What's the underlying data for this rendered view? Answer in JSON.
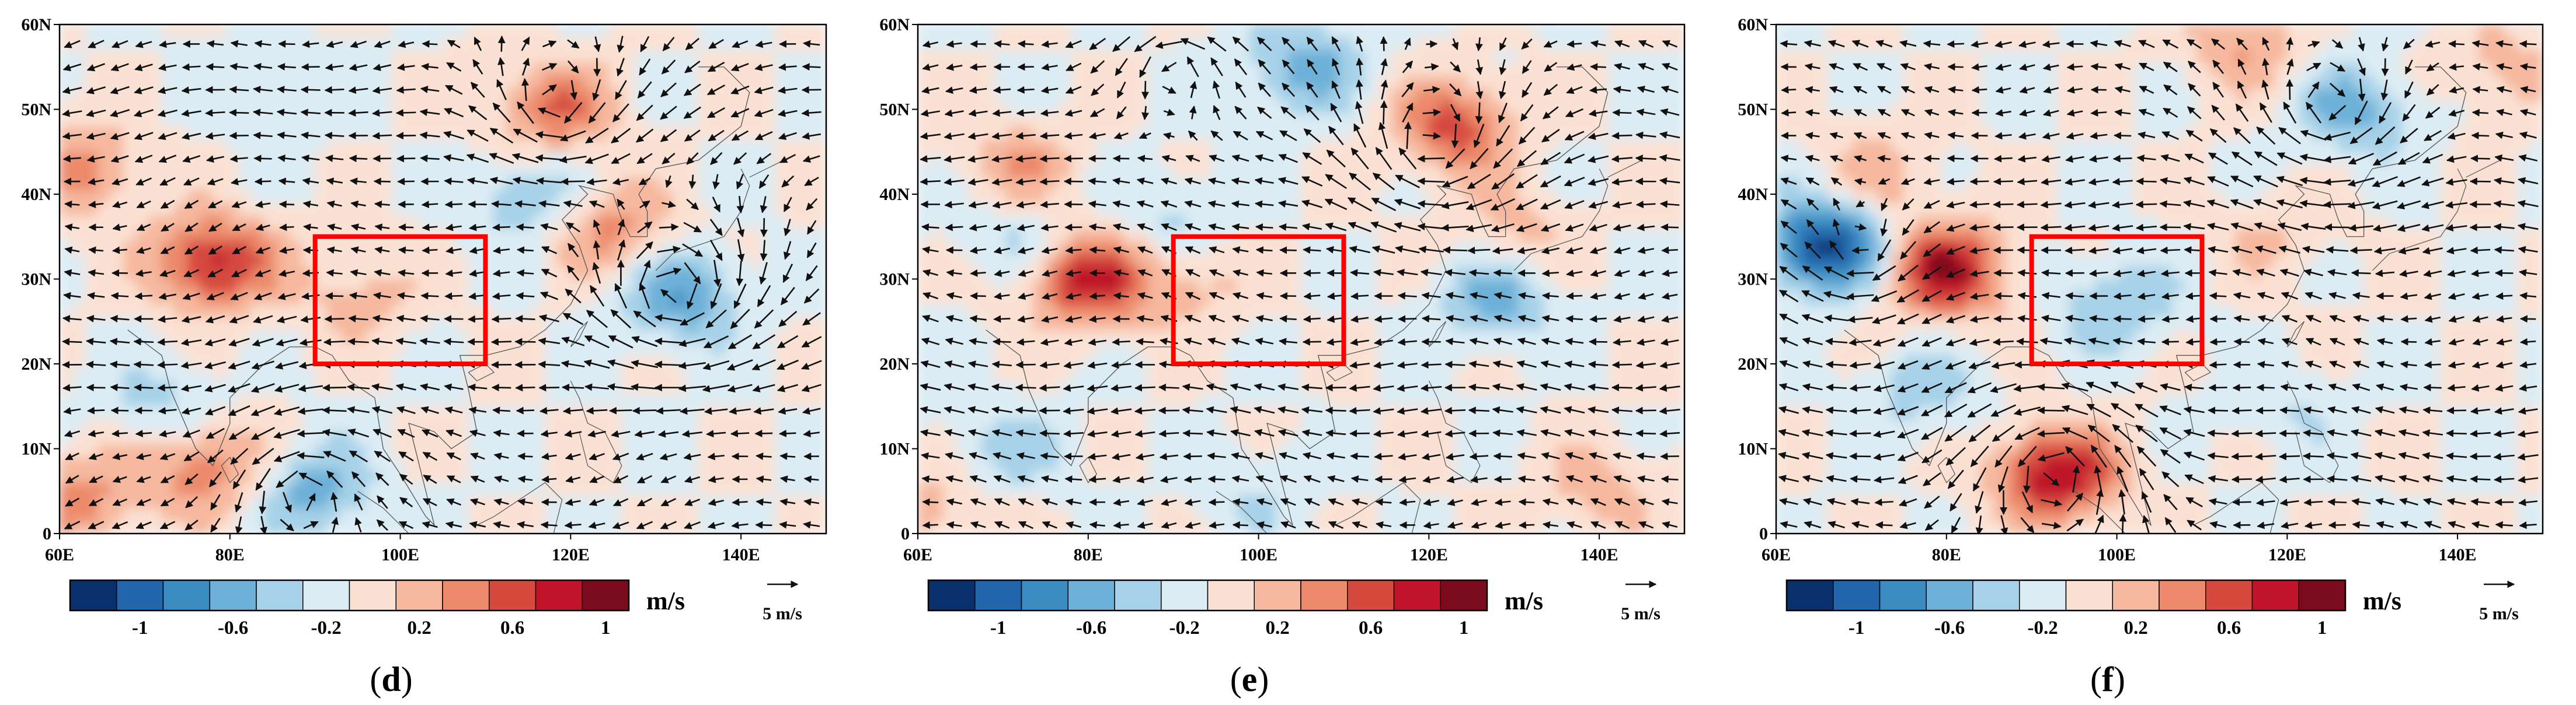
{
  "chart_data": [
    {
      "type": "heatmap",
      "panel": "d",
      "title": "",
      "xlabel": "",
      "ylabel": "",
      "xlim": [
        60,
        150
      ],
      "ylim": [
        0,
        60
      ],
      "x_ticks": [
        "60E",
        "80E",
        "100E",
        "120E",
        "140E"
      ],
      "y_ticks": [
        "0",
        "10N",
        "20N",
        "30N",
        "40N",
        "50N",
        "60N"
      ],
      "box_region": {
        "lon": [
          90,
          110
        ],
        "lat": [
          20,
          35
        ]
      },
      "anomaly_centers": [
        {
          "lon": 78,
          "lat": 32,
          "value": 0.9
        },
        {
          "lon": 63,
          "lat": 43,
          "value": 0.5
        },
        {
          "lon": 77,
          "lat": 8,
          "value": 0.6
        },
        {
          "lon": 62,
          "lat": 4,
          "value": 0.5
        },
        {
          "lon": 118,
          "lat": 50,
          "value": 0.6
        },
        {
          "lon": 125,
          "lat": 36,
          "value": 0.5
        },
        {
          "lon": 133,
          "lat": 28,
          "value": -0.6
        },
        {
          "lon": 115,
          "lat": 40,
          "value": -0.4
        },
        {
          "lon": 90,
          "lat": 5,
          "value": -0.5
        },
        {
          "lon": 72,
          "lat": 15,
          "value": -0.3
        },
        {
          "lon": 95,
          "lat": 28,
          "value": 0.3
        },
        {
          "lon": 85,
          "lat": 52,
          "value": -0.2
        }
      ],
      "vortices": [
        {
          "lon": 132,
          "lat": 28,
          "sense": "cw",
          "strength": 1.4
        },
        {
          "lon": 118,
          "lat": 50,
          "sense": "cw",
          "strength": 1.0
        },
        {
          "lon": 88,
          "lat": 5,
          "sense": "ccw",
          "strength": 0.9
        }
      ],
      "base_wind": {
        "u": -0.7,
        "v": -0.1
      },
      "colorbar": {
        "levels": [
          "-1",
          "-0.6",
          "-0.2",
          "0.2",
          "0.6",
          "1"
        ],
        "colors": [
          "#08306b",
          "#2166ac",
          "#3b8cc2",
          "#6db0d8",
          "#a6d1e8",
          "#dcecf4",
          "#fbe1d3",
          "#f6b89e",
          "#ec8a6b",
          "#d6493f",
          "#c0142a",
          "#7b0a1f"
        ],
        "unit": "m/s"
      },
      "reference_vector": {
        "label": "5 m/s",
        "value": 5
      },
      "caption_letter": "d"
    },
    {
      "type": "heatmap",
      "panel": "e",
      "title": "",
      "xlabel": "",
      "ylabel": "",
      "xlim": [
        60,
        150
      ],
      "ylim": [
        0,
        60
      ],
      "x_ticks": [
        "60E",
        "80E",
        "100E",
        "120E",
        "140E"
      ],
      "y_ticks": [
        "0",
        "10N",
        "20N",
        "30N",
        "40N",
        "50N",
        "60N"
      ],
      "box_region": {
        "lon": [
          90,
          110
        ],
        "lat": [
          20,
          35
        ]
      },
      "anomaly_centers": [
        {
          "lon": 80,
          "lat": 30,
          "value": 0.9
        },
        {
          "lon": 72,
          "lat": 43,
          "value": 0.4
        },
        {
          "lon": 123,
          "lat": 48,
          "value": 0.7
        },
        {
          "lon": 92,
          "lat": 30,
          "value": 0.3
        },
        {
          "lon": 130,
          "lat": 35,
          "value": 0.3
        },
        {
          "lon": 105,
          "lat": 55,
          "value": -0.5
        },
        {
          "lon": 128,
          "lat": 28,
          "value": -0.5
        },
        {
          "lon": 72,
          "lat": 35,
          "value": -0.3
        },
        {
          "lon": 90,
          "lat": 37,
          "value": -0.3
        },
        {
          "lon": 70,
          "lat": 10,
          "value": -0.3
        },
        {
          "lon": 100,
          "lat": 5,
          "value": -0.2
        },
        {
          "lon": 140,
          "lat": 5,
          "value": 0.3
        },
        {
          "lon": 62,
          "lat": 3,
          "value": 0.3
        }
      ],
      "vortices": [
        {
          "lon": 120,
          "lat": 45,
          "sense": "cw",
          "strength": 1.2
        },
        {
          "lon": 90,
          "lat": 55,
          "sense": "ccw",
          "strength": 0.8
        }
      ],
      "base_wind": {
        "u": -0.8,
        "v": 0.05
      },
      "colorbar": {
        "levels": [
          "-1",
          "-0.6",
          "-0.2",
          "0.2",
          "0.6",
          "1"
        ],
        "colors": [
          "#08306b",
          "#2166ac",
          "#3b8cc2",
          "#6db0d8",
          "#a6d1e8",
          "#dcecf4",
          "#fbe1d3",
          "#f6b89e",
          "#ec8a6b",
          "#d6493f",
          "#c0142a",
          "#7b0a1f"
        ],
        "unit": "m/s"
      },
      "reference_vector": {
        "label": "5 m/s",
        "value": 5
      },
      "caption_letter": "e"
    },
    {
      "type": "heatmap",
      "panel": "f",
      "title": "",
      "xlabel": "",
      "ylabel": "",
      "xlim": [
        60,
        150
      ],
      "ylim": [
        0,
        60
      ],
      "x_ticks": [
        "60E",
        "80E",
        "100E",
        "120E",
        "140E"
      ],
      "y_ticks": [
        "0",
        "10N",
        "20N",
        "30N",
        "40N",
        "50N",
        "60N"
      ],
      "box_region": {
        "lon": [
          90,
          110
        ],
        "lat": [
          20,
          35
        ]
      },
      "anomaly_centers": [
        {
          "lon": 66,
          "lat": 34,
          "value": -1.1
        },
        {
          "lon": 80,
          "lat": 31,
          "value": 1.0
        },
        {
          "lon": 93,
          "lat": 7,
          "value": 1.0
        },
        {
          "lon": 100,
          "lat": 27,
          "value": -0.4
        },
        {
          "lon": 128,
          "lat": 50,
          "value": -0.5
        },
        {
          "lon": 72,
          "lat": 42,
          "value": 0.3
        },
        {
          "lon": 145,
          "lat": 55,
          "value": 0.3
        },
        {
          "lon": 115,
          "lat": 58,
          "value": 0.4
        },
        {
          "lon": 77,
          "lat": 17,
          "value": -0.3
        },
        {
          "lon": 118,
          "lat": 35,
          "value": 0.2
        },
        {
          "lon": 120,
          "lat": 15,
          "value": -0.2
        }
      ],
      "vortices": [
        {
          "lon": 93,
          "lat": 8,
          "sense": "ccw",
          "strength": 1.4
        },
        {
          "lon": 125,
          "lat": 50,
          "sense": "cw",
          "strength": 0.9
        },
        {
          "lon": 70,
          "lat": 33,
          "sense": "cw",
          "strength": 0.8
        }
      ],
      "base_wind": {
        "u": -0.8,
        "v": 0.05
      },
      "colorbar": {
        "levels": [
          "-1",
          "-0.6",
          "-0.2",
          "0.2",
          "0.6",
          "1"
        ],
        "colors": [
          "#08306b",
          "#2166ac",
          "#3b8cc2",
          "#6db0d8",
          "#a6d1e8",
          "#dcecf4",
          "#fbe1d3",
          "#f6b89e",
          "#ec8a6b",
          "#d6493f",
          "#c0142a",
          "#7b0a1f"
        ],
        "unit": "m/s"
      },
      "reference_vector": {
        "label": "5 m/s",
        "value": 5
      },
      "caption_letter": "f"
    }
  ]
}
